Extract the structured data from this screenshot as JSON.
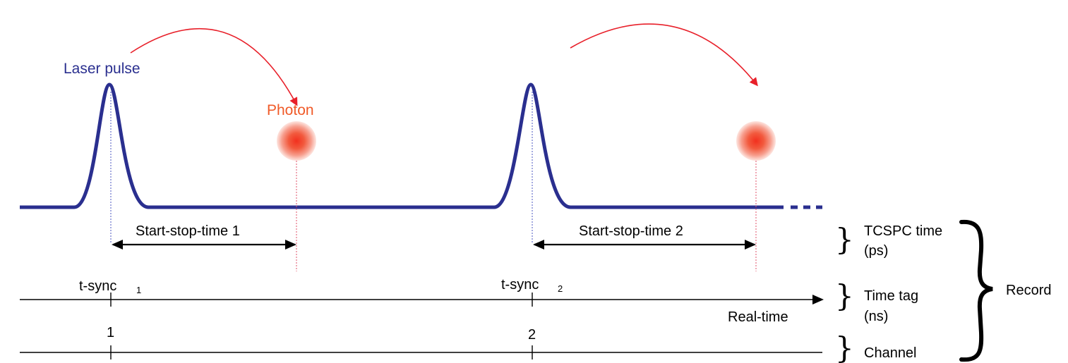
{
  "labels": {
    "laser_pulse": "Laser pulse",
    "photon": "Photon",
    "start_stop_1": "Start-stop-time 1",
    "start_stop_2": "Start-stop-time 2",
    "tsync_1": "t-sync",
    "tsync_1_sub": "1",
    "tsync_2": "t-sync",
    "tsync_2_sub": "2",
    "channel_1": "1",
    "channel_2": "2",
    "real_time": "Real-time",
    "tcspc_time": "TCSPC time",
    "tcspc_unit": "(ps)",
    "time_tag": "Time tag",
    "time_tag_unit": "(ns)",
    "channel": "Channel",
    "record": "Record"
  },
  "colors": {
    "pulse": "#2a2f8f",
    "photon_label": "#f05a28",
    "photon_core": "#f2301e",
    "arrow_red": "#e8202a",
    "photon_marker": "#e0506a",
    "sync_marker": "#4a55c0",
    "axis": "#000000"
  }
}
